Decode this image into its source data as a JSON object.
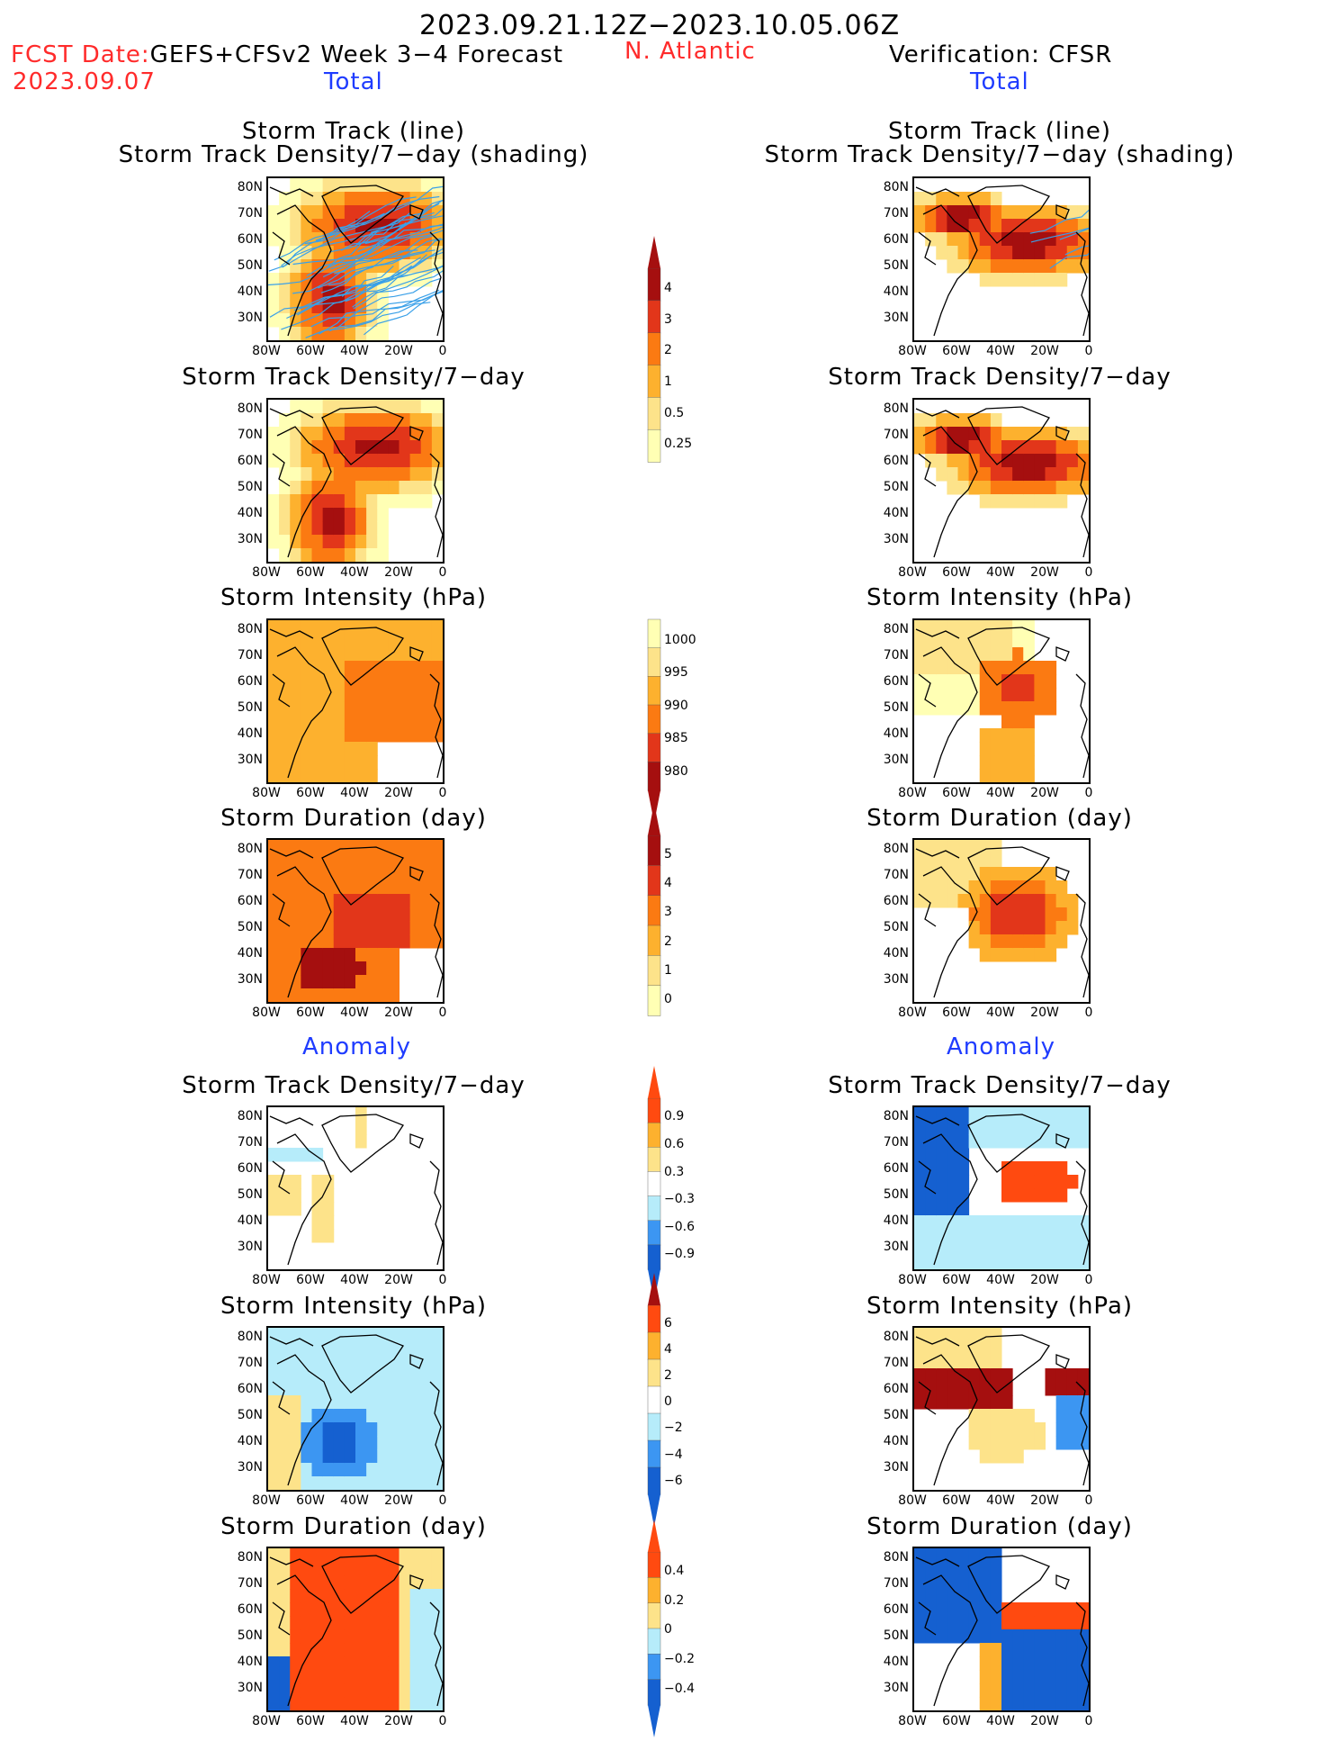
{
  "header": {
    "title": "2023.09.21.12Z−2023.10.05.06Z",
    "fcst_label": "FCST Date:",
    "fcst_model": "GEFS+CFSv2 Week 3−4 Forecast",
    "region": "N. Atlantic",
    "verification": "Verification: CFSR",
    "fcst_date": "2023.09.07",
    "left_total": "Total",
    "right_total": "Total",
    "left_anomaly": "Anomaly",
    "right_anomaly": "Anomaly"
  },
  "panel_titles": {
    "track_line": "Storm Track (line)",
    "track_shading": "Storm Track Density/7−day (shading)",
    "density": "Storm Track Density/7−day",
    "intensity": "Storm Intensity (hPa)",
    "duration": "Storm Duration (day)"
  },
  "axes": {
    "lat_labels": [
      "80N",
      "70N",
      "60N",
      "50N",
      "40N",
      "30N"
    ],
    "lon_labels": [
      "80W",
      "60W",
      "40W",
      "20W",
      "0"
    ]
  },
  "colorbars": {
    "density_total": [
      "4",
      "3",
      "2",
      "1",
      "0.5",
      "0.25"
    ],
    "intensity_total": [
      "1000",
      "995",
      "990",
      "985",
      "980"
    ],
    "duration_total": [
      "5",
      "4",
      "3",
      "2",
      "1",
      "0"
    ],
    "density_anom": [
      "0.9",
      "0.6",
      "0.3",
      "−0.3",
      "−0.6",
      "−0.9"
    ],
    "intensity_anom": [
      "6",
      "4",
      "2",
      "0",
      "−2",
      "−4",
      "−6"
    ],
    "duration_anom": [
      "0.4",
      "0.2",
      "0",
      "−0.2",
      "−0.4"
    ]
  },
  "colors": {
    "title_red": "#ff2b2b",
    "label_blue": "#1f3cff",
    "warm_scale": [
      "#ffffb4",
      "#fde38a",
      "#fdb12e",
      "#fb7a12",
      "#e2361a",
      "#a50f0f"
    ],
    "anom_scale": [
      "#1560d0",
      "#3c96f2",
      "#b6ecfa",
      "#ffffff",
      "#fde38a",
      "#fdb12e",
      "#ff4a10"
    ]
  }
}
